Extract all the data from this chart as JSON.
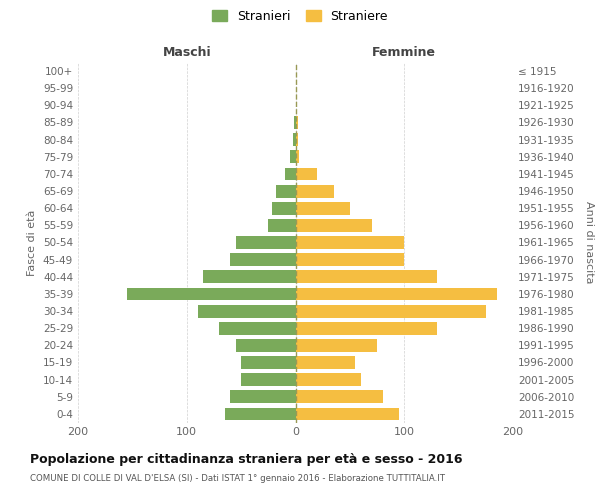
{
  "age_groups": [
    "0-4",
    "5-9",
    "10-14",
    "15-19",
    "20-24",
    "25-29",
    "30-34",
    "35-39",
    "40-44",
    "45-49",
    "50-54",
    "55-59",
    "60-64",
    "65-69",
    "70-74",
    "75-79",
    "80-84",
    "85-89",
    "90-94",
    "95-99",
    "100+"
  ],
  "birth_years": [
    "2011-2015",
    "2006-2010",
    "2001-2005",
    "1996-2000",
    "1991-1995",
    "1986-1990",
    "1981-1985",
    "1976-1980",
    "1971-1975",
    "1966-1970",
    "1961-1965",
    "1956-1960",
    "1951-1955",
    "1946-1950",
    "1941-1945",
    "1936-1940",
    "1931-1935",
    "1926-1930",
    "1921-1925",
    "1916-1920",
    "≤ 1915"
  ],
  "maschi": [
    65,
    60,
    50,
    50,
    55,
    70,
    90,
    155,
    85,
    60,
    55,
    25,
    22,
    18,
    10,
    5,
    2,
    1,
    0,
    0,
    0
  ],
  "femmine": [
    95,
    80,
    60,
    55,
    75,
    130,
    175,
    185,
    130,
    100,
    100,
    70,
    50,
    35,
    20,
    3,
    2,
    2,
    0,
    0,
    0
  ],
  "maschi_color": "#7aaa5a",
  "femmine_color": "#f5be41",
  "background_color": "#ffffff",
  "grid_color": "#d0d0d0",
  "title": "Popolazione per cittadinanza straniera per età e sesso - 2016",
  "subtitle": "COMUNE DI COLLE DI VAL D'ELSA (SI) - Dati ISTAT 1° gennaio 2016 - Elaborazione TUTTITALIA.IT",
  "ylabel_left": "Fasce di età",
  "ylabel_right": "Anni di nascita",
  "xlabel_left": "Maschi",
  "xlabel_right": "Femmine",
  "legend_stranieri": "Stranieri",
  "legend_straniere": "Straniere",
  "xlim": 200
}
